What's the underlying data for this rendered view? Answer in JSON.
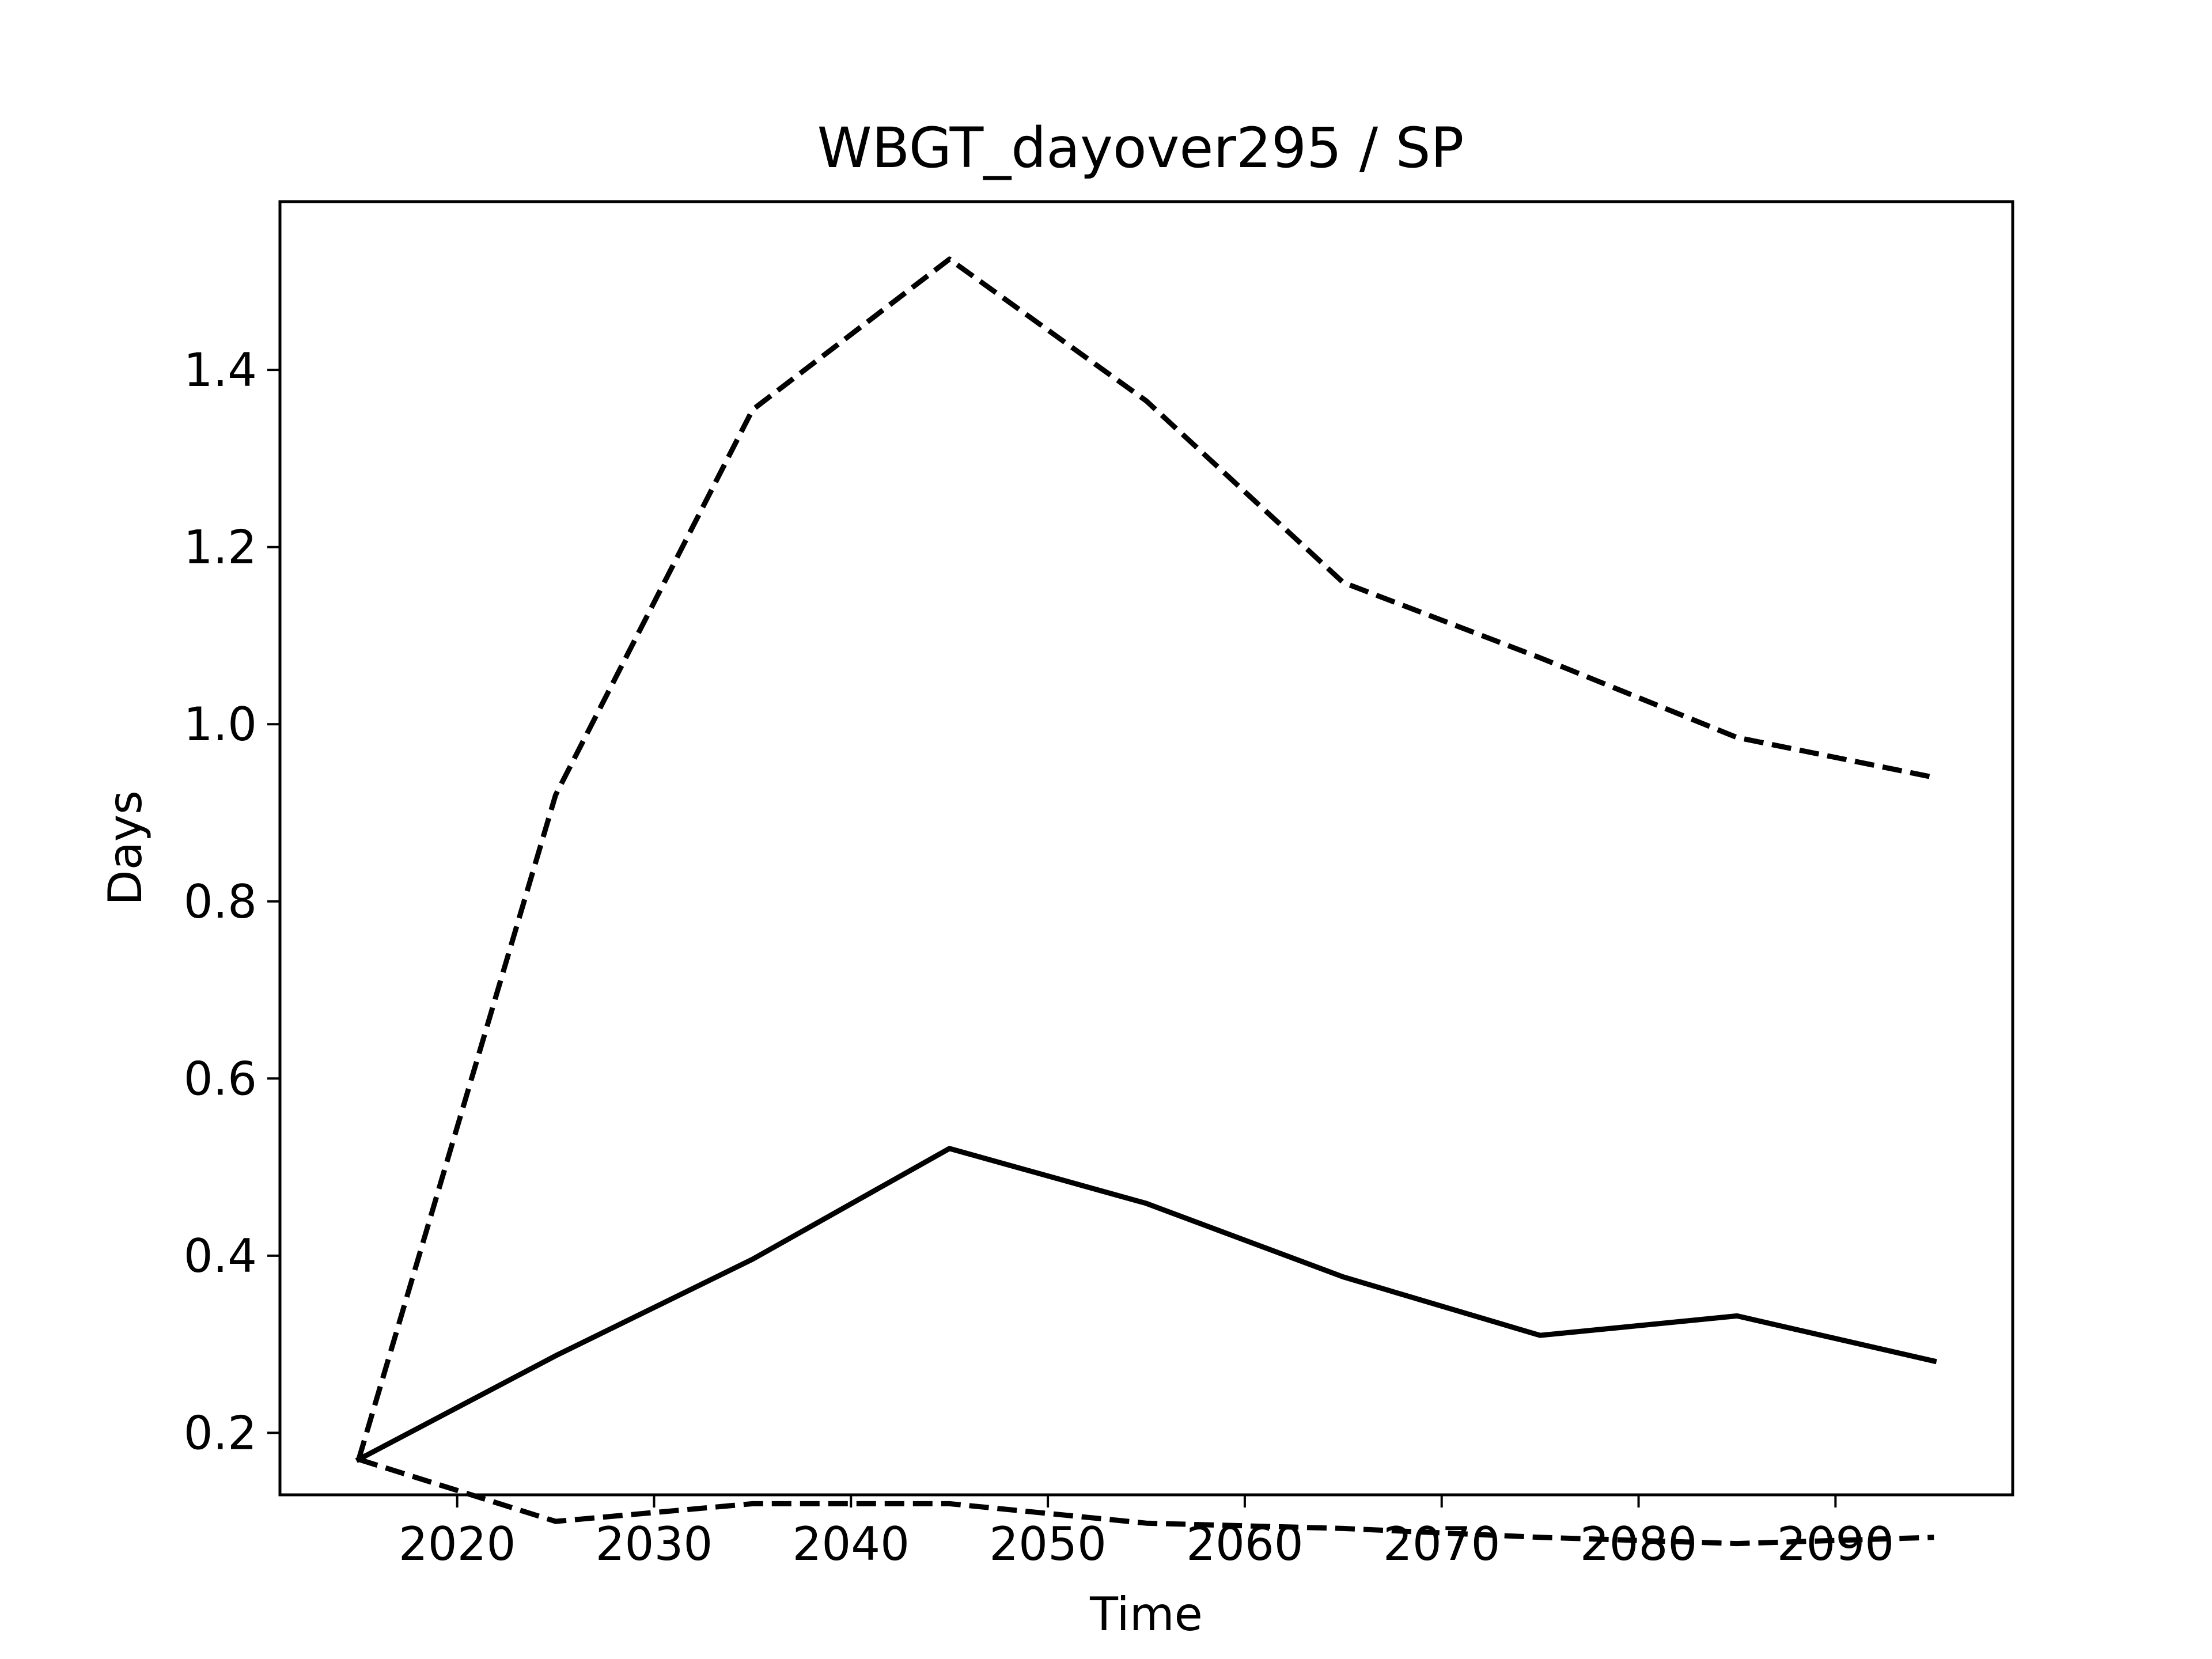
{
  "chart_data": {
    "type": "line",
    "title": "WBGT_dayover295 / SP",
    "xlabel": "Time",
    "ylabel": "Days",
    "x": [
      2015,
      2025,
      2035,
      2045,
      2055,
      2065,
      2075,
      2085,
      2095
    ],
    "xlim": [
      2011,
      2099
    ],
    "ylim": [
      0.13,
      1.59
    ],
    "xticks": [
      2020,
      2030,
      2040,
      2050,
      2060,
      2070,
      2080,
      2090
    ],
    "yticks": [
      0.2,
      0.4,
      0.6,
      0.8,
      1.0,
      1.2,
      1.4
    ],
    "xtick_labels": [
      "2020",
      "2030",
      "2040",
      "2050",
      "2060",
      "2070",
      "2080",
      "2090"
    ],
    "ytick_labels": [
      "0.2",
      "0.4",
      "0.6",
      "0.8",
      "1.0",
      "1.2",
      "1.4"
    ],
    "grid": false,
    "legend": "none",
    "series": [
      {
        "style": "solid",
        "color": "#000000",
        "values": [
          0.17,
          0.287,
          0.396,
          0.521,
          0.459,
          0.376,
          0.31,
          0.332,
          0.281
        ]
      },
      {
        "style": "dashed",
        "color": "#000000",
        "values": [
          0.17,
          0.92,
          1.355,
          1.525,
          1.365,
          1.16,
          1.075,
          0.985,
          0.94
        ]
      },
      {
        "style": "dashed",
        "color": "#000000",
        "values": [
          0.17,
          0.1,
          0.12,
          0.12,
          0.098,
          0.092,
          0.082,
          0.075,
          0.082
        ]
      }
    ]
  }
}
